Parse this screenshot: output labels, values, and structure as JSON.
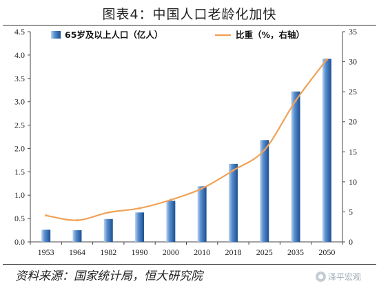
{
  "title": "图表4：中国人口老龄化加快",
  "source": "资料来源：国家统计局，恒大研究院",
  "watermark": "泽平宏观",
  "chart_data": {
    "type": "bar",
    "categories": [
      "1953",
      "1964",
      "1982",
      "1990",
      "2000",
      "2010",
      "2018",
      "2025",
      "2035",
      "2050"
    ],
    "series": [
      {
        "name": "65岁及以上人口（亿人）",
        "type": "bar",
        "axis": "left",
        "color": "#2f6db3",
        "values": [
          0.26,
          0.25,
          0.49,
          0.63,
          0.88,
          1.19,
          1.67,
          2.18,
          3.22,
          3.92
        ]
      },
      {
        "name": "比重（%，右轴）",
        "type": "line",
        "axis": "right",
        "color": "#f0a258",
        "values": [
          4.4,
          3.6,
          4.9,
          5.6,
          7.0,
          8.9,
          11.9,
          15.3,
          23.5,
          30.4
        ]
      }
    ],
    "y_left": {
      "ylim": [
        0,
        4.5
      ],
      "ticks": [
        "0.0",
        "0.5",
        "1.0",
        "1.5",
        "2.0",
        "2.5",
        "3.0",
        "3.5",
        "4.0",
        "4.5"
      ]
    },
    "y_right": {
      "ylim": [
        0,
        35
      ],
      "ticks": [
        "0",
        "5",
        "10",
        "15",
        "20",
        "25",
        "30",
        "35"
      ]
    },
    "legend_position": "top",
    "grid": false
  }
}
